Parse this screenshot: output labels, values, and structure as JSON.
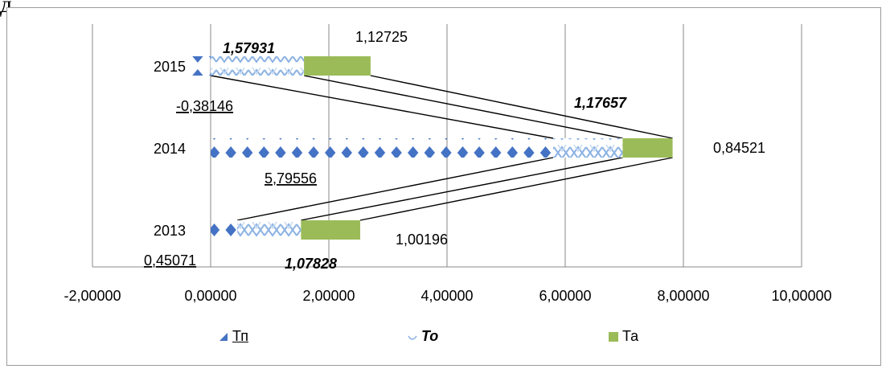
{
  "caption": "д…… … … …  … … … … … … …",
  "colors": {
    "tp": "#4472c4",
    "to": "#8db3e2",
    "ta": "#9bbb59",
    "grid": "#888888",
    "connector": "#000000"
  },
  "chart_data": {
    "type": "bar",
    "orientation": "horizontal",
    "stacked": true,
    "title": "",
    "xlabel": "",
    "ylabel": "",
    "xlim": [
      -2,
      10
    ],
    "x_ticks": [
      -2,
      0,
      2,
      4,
      6,
      8,
      10
    ],
    "x_tick_labels": [
      "-2,00000",
      "0,00000",
      "2,00000",
      "4,00000",
      "6,00000",
      "8,00000",
      "10,00000"
    ],
    "grid": true,
    "legend": "bottom",
    "categories": [
      "2013",
      "2014",
      "2015"
    ],
    "series": [
      {
        "name": "Тп",
        "values": [
          0.45071,
          5.79556,
          -0.38146
        ],
        "labels": [
          "0,45071",
          "5,79556",
          "-0,38146"
        ],
        "pattern": "diamonds",
        "icon": "diamond-marker-icon"
      },
      {
        "name": "То",
        "values": [
          1.07828,
          1.17657,
          1.57931
        ],
        "labels": [
          "1,07828",
          "1,17657",
          "1,57931"
        ],
        "pattern": "wave-hatch",
        "icon": "wave-hatch-icon"
      },
      {
        "name": "Та",
        "values": [
          1.00196,
          0.84521,
          1.12725
        ],
        "labels": [
          "1,00196",
          "0,84521",
          "1,12725"
        ],
        "pattern": "solid",
        "icon": "solid-square-icon"
      }
    ],
    "annotations": [
      "series lines connecting bar ends between years"
    ]
  }
}
